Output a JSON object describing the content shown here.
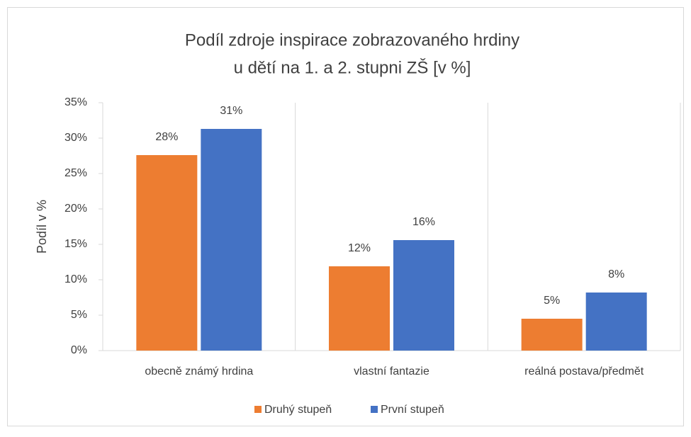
{
  "chart_data": {
    "type": "bar",
    "title": [
      "Podíl zdroje inspirace zobrazovaného hrdiny",
      "u dětí na  1. a 2. stupni ZŠ [v %]"
    ],
    "y_label": "Podíl v %",
    "categories": [
      "obecně známý hrdina",
      "vlastní fantazie",
      "reálná postava/předmět"
    ],
    "series": [
      {
        "name": "Druhý stupeň",
        "color": "#ed7d31",
        "values": [
          27.6,
          11.9,
          4.5
        ],
        "value_labels": [
          "28%",
          "12%",
          "5%"
        ]
      },
      {
        "name": "První stupeň",
        "color": "#4472c4",
        "values": [
          31.3,
          15.6,
          8.2
        ],
        "value_labels": [
          "31%",
          "16%",
          "8%"
        ]
      }
    ],
    "ylim": [
      0,
      35
    ],
    "yticks": [
      {
        "value": 0,
        "label": "0%"
      },
      {
        "value": 5,
        "label": "5%"
      },
      {
        "value": 10,
        "label": "10%"
      },
      {
        "value": 15,
        "label": "15%"
      },
      {
        "value": 20,
        "label": "20%"
      },
      {
        "value": 25,
        "label": "25%"
      },
      {
        "value": 30,
        "label": "30%"
      },
      {
        "value": 35,
        "label": "35%"
      }
    ],
    "legend": "bottom"
  }
}
